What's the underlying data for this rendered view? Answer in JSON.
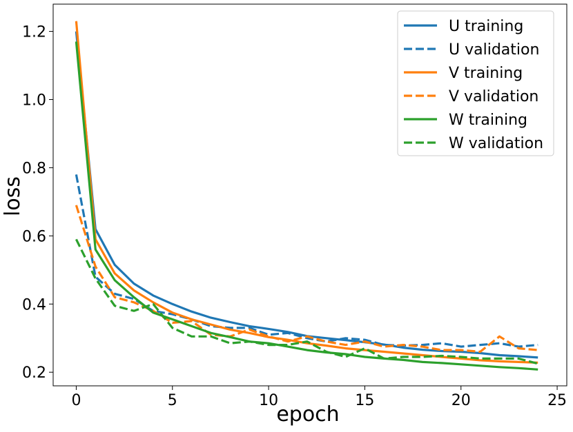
{
  "chart_data": {
    "type": "line",
    "title": "",
    "xlabel": "epoch",
    "ylabel": "loss",
    "xlim": [
      -1.2,
      25.5
    ],
    "ylim": [
      0.16,
      1.28
    ],
    "xticks": [
      0,
      5,
      10,
      15,
      20,
      25
    ],
    "yticks": [
      0.2,
      0.4,
      0.6,
      0.8,
      1.0,
      1.2
    ],
    "xtick_labels": [
      "0",
      "5",
      "10",
      "15",
      "20",
      "25"
    ],
    "ytick_labels": [
      "0.2",
      "0.4",
      "0.6",
      "0.8",
      "1.0",
      "1.2"
    ],
    "grid": false,
    "legend_position": "top-right",
    "x": [
      0,
      1,
      2,
      3,
      4,
      5,
      6,
      7,
      8,
      9,
      10,
      11,
      12,
      13,
      14,
      15,
      16,
      17,
      18,
      19,
      20,
      21,
      22,
      23,
      24
    ],
    "series": [
      {
        "name": "U training",
        "color": "#1f77b4",
        "dash": "solid",
        "values": [
          1.2,
          0.62,
          0.515,
          0.46,
          0.425,
          0.4,
          0.378,
          0.36,
          0.347,
          0.335,
          0.327,
          0.318,
          0.306,
          0.3,
          0.294,
          0.288,
          0.281,
          0.272,
          0.266,
          0.262,
          0.26,
          0.256,
          0.25,
          0.247,
          0.243
        ]
      },
      {
        "name": "U validation",
        "color": "#1f77b4",
        "dash": "dashed",
        "values": [
          0.78,
          0.48,
          0.43,
          0.415,
          0.38,
          0.37,
          0.355,
          0.335,
          0.33,
          0.33,
          0.31,
          0.315,
          0.3,
          0.29,
          0.3,
          0.295,
          0.28,
          0.278,
          0.28,
          0.285,
          0.275,
          0.28,
          0.285,
          0.275,
          0.28
        ]
      },
      {
        "name": "V training",
        "color": "#ff7f0e",
        "dash": "solid",
        "values": [
          1.23,
          0.59,
          0.49,
          0.44,
          0.405,
          0.375,
          0.355,
          0.34,
          0.325,
          0.315,
          0.303,
          0.295,
          0.285,
          0.278,
          0.27,
          0.265,
          0.26,
          0.255,
          0.25,
          0.245,
          0.24,
          0.235,
          0.232,
          0.23,
          0.228
        ]
      },
      {
        "name": "V validation",
        "color": "#ff7f0e",
        "dash": "dashed",
        "values": [
          0.69,
          0.51,
          0.42,
          0.405,
          0.38,
          0.345,
          0.35,
          0.31,
          0.305,
          0.325,
          0.305,
          0.29,
          0.305,
          0.29,
          0.28,
          0.29,
          0.275,
          0.28,
          0.275,
          0.265,
          0.265,
          0.26,
          0.305,
          0.27,
          0.265
        ]
      },
      {
        "name": "W training",
        "color": "#2ca02c",
        "dash": "solid",
        "values": [
          1.17,
          0.56,
          0.47,
          0.42,
          0.375,
          0.355,
          0.335,
          0.315,
          0.303,
          0.29,
          0.285,
          0.275,
          0.265,
          0.258,
          0.253,
          0.245,
          0.24,
          0.236,
          0.23,
          0.227,
          0.223,
          0.219,
          0.215,
          0.212,
          0.208
        ]
      },
      {
        "name": "W validation",
        "color": "#2ca02c",
        "dash": "dashed",
        "values": [
          0.59,
          0.475,
          0.395,
          0.38,
          0.4,
          0.33,
          0.305,
          0.305,
          0.285,
          0.29,
          0.28,
          0.28,
          0.29,
          0.26,
          0.245,
          0.27,
          0.24,
          0.245,
          0.245,
          0.248,
          0.245,
          0.24,
          0.24,
          0.24,
          0.225
        ]
      }
    ]
  }
}
